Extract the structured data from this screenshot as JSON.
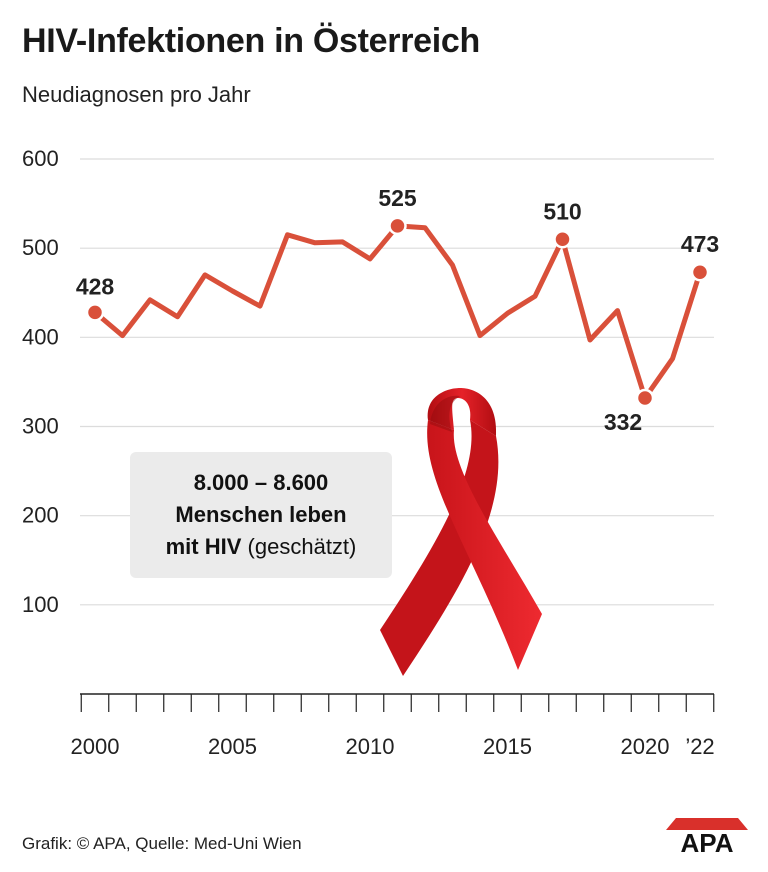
{
  "header": {
    "title": "HIV-Infektionen in Österreich",
    "subtitle": "Neudiagnosen pro Jahr"
  },
  "chart_data": {
    "type": "line",
    "title": "HIV-Infektionen in Österreich",
    "subtitle": "Neudiagnosen pro Jahr",
    "xlabel": "",
    "ylabel": "",
    "x": [
      2000,
      2001,
      2002,
      2003,
      2004,
      2005,
      2006,
      2007,
      2008,
      2009,
      2010,
      2011,
      2012,
      2013,
      2014,
      2015,
      2016,
      2017,
      2018,
      2019,
      2020,
      2021,
      2022
    ],
    "series": [
      {
        "values": [
          428,
          402,
          442,
          423,
          470,
          452,
          435,
          515,
          506,
          507,
          488,
          525,
          523,
          481,
          402,
          427,
          446,
          510,
          397,
          430,
          332,
          376,
          473
        ]
      }
    ],
    "ylim": [
      0,
      600
    ],
    "y_ticks": [
      "100",
      "200",
      "300",
      "400",
      "500",
      "600"
    ],
    "x_tick_labels": [
      {
        "year": 2000,
        "label": "2000"
      },
      {
        "year": 2005,
        "label": "2005"
      },
      {
        "year": 2010,
        "label": "2010"
      },
      {
        "year": 2015,
        "label": "2015"
      },
      {
        "year": 2020,
        "label": "2020"
      },
      {
        "year": 2022,
        "label": "’22"
      }
    ],
    "highlighted_points": [
      {
        "year": 2000,
        "label": "428"
      },
      {
        "year": 2011,
        "label": "525"
      },
      {
        "year": 2017,
        "label": "510"
      },
      {
        "year": 2020,
        "label": "332"
      },
      {
        "year": 2022,
        "label": "473"
      }
    ],
    "grid": true,
    "line_color": "#d9503a",
    "grid_color": "#dcdcdc"
  },
  "infobox": {
    "range": "8.000 – 8.600",
    "line2": "Menschen leben",
    "line3_bold": "mit HIV",
    "line3_rest": "(geschätzt)"
  },
  "ribbon": {
    "icon": "red-ribbon-icon",
    "color": "#e2141b"
  },
  "footer": {
    "credit": "Grafik: © APA, Quelle: Med-Uni Wien",
    "logo_text": "APA"
  }
}
